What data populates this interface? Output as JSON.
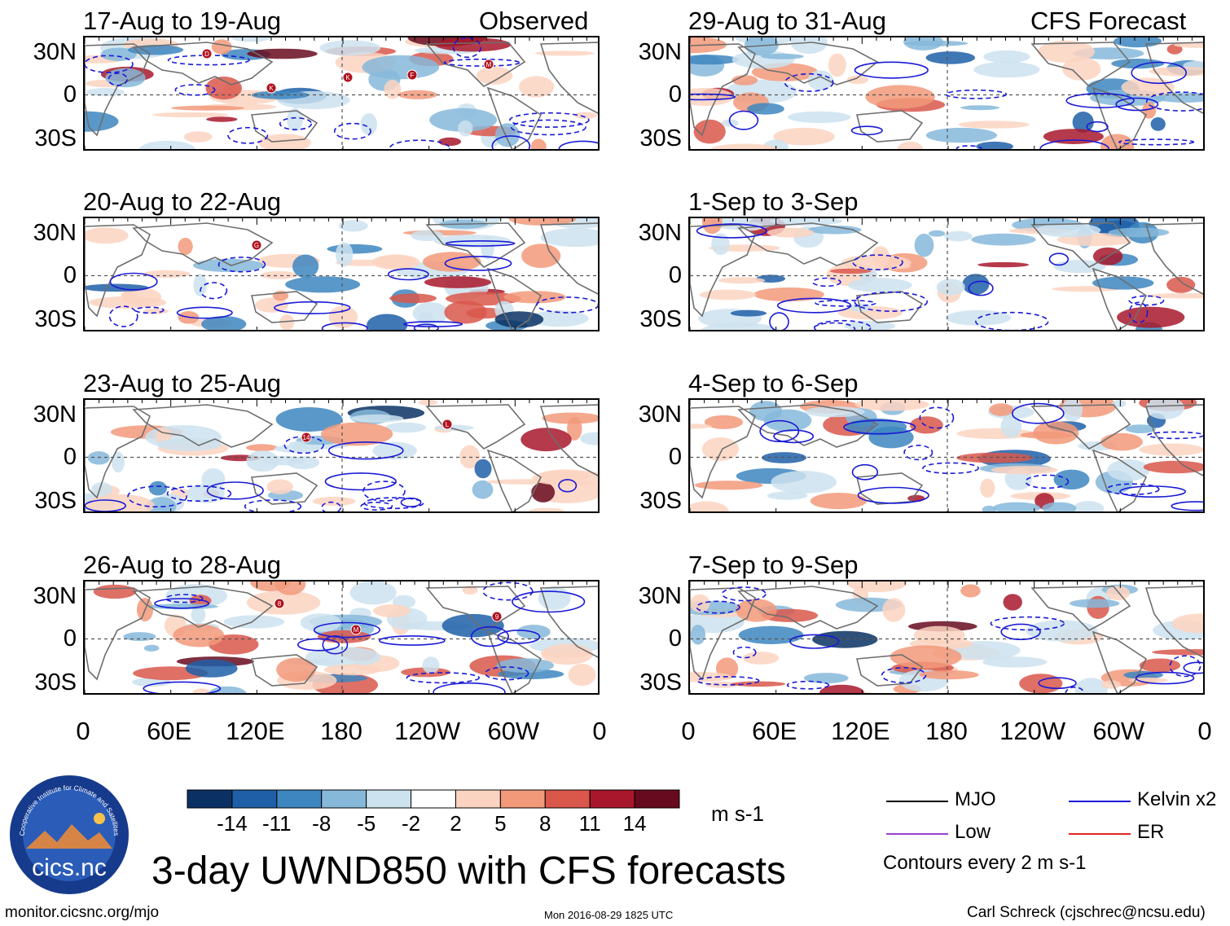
{
  "column_headers": {
    "left": "Observed",
    "right": "CFS Forecast"
  },
  "panels": [
    {
      "title": "17-Aug to 19-Aug",
      "storms": [
        "D",
        "K",
        "M",
        "K",
        "F"
      ]
    },
    {
      "title": "20-Aug to 22-Aug",
      "storms": [
        "G"
      ]
    },
    {
      "title": "23-Aug to 25-Aug",
      "storms": [
        "14",
        "L"
      ]
    },
    {
      "title": "26-Aug to 28-Aug",
      "storms": [
        "M",
        "9",
        "8"
      ]
    },
    {
      "title": "29-Aug to 31-Aug",
      "storms": []
    },
    {
      "title": "1-Sep to 3-Sep",
      "storms": []
    },
    {
      "title": "4-Sep to 6-Sep",
      "storms": []
    },
    {
      "title": "7-Sep to 9-Sep",
      "storms": []
    }
  ],
  "lat_ticks": [
    "30N",
    "0",
    "30S"
  ],
  "lon_ticks": [
    "0",
    "60E",
    "120E",
    "180",
    "120W",
    "60W",
    "0"
  ],
  "colorbar": {
    "ticks": [
      "-14",
      "-11",
      "-8",
      "-5",
      "-2",
      "2",
      "5",
      "8",
      "11",
      "14"
    ],
    "units": "m s-1",
    "colors": [
      "#0b3164",
      "#1f5fa8",
      "#3d86c0",
      "#86b8da",
      "#cce2ef",
      "#ffffff",
      "#fbd3c1",
      "#f2997a",
      "#d9574b",
      "#a8172b",
      "#670a1f"
    ]
  },
  "legend": {
    "items": [
      {
        "label": "MJO",
        "color": "#000000"
      },
      {
        "label": "Kelvin x2",
        "color": "#1a1ad6"
      },
      {
        "label": "Low",
        "color": "#9b3fd0"
      },
      {
        "label": "ER",
        "color": "#e0261f"
      }
    ],
    "contours": "Contours every 2 m s-1"
  },
  "logo": {
    "name": "cics.nc",
    "ring_text": "Cooperative Institute for Climate and Satellites"
  },
  "title": "3-day UWND850 with CFS forecasts",
  "footer": {
    "left": "monitor.cicsnc.org/mjo",
    "center": "Mon 2016-08-29 1825 UTC",
    "right": "Carl Schreck (cjschrec@ncsu.edu)"
  },
  "chart_data": {
    "type": "heatmap",
    "title": "3-day UWND850 with CFS forecasts",
    "variable": "850-hPa zonal wind anomaly",
    "units": "m s-1",
    "contour_interval": "2 m s-1",
    "x_axis": {
      "ticks": [
        "0",
        "60E",
        "120E",
        "180",
        "120W",
        "60W",
        "0"
      ],
      "range_deg": [
        0,
        360
      ]
    },
    "y_axis": {
      "ticks": [
        "30N",
        "0",
        "30S"
      ],
      "range_deg": [
        -40,
        40
      ]
    },
    "color_levels": [
      -14,
      -11,
      -8,
      -5,
      -2,
      2,
      5,
      8,
      11,
      14
    ],
    "observed_periods": [
      "17-Aug to 19-Aug",
      "20-Aug to 22-Aug",
      "23-Aug to 25-Aug",
      "26-Aug to 28-Aug"
    ],
    "forecast_periods": [
      "29-Aug to 31-Aug",
      "1-Sep to 3-Sep",
      "4-Sep to 6-Sep",
      "7-Sep to 9-Sep"
    ]
  }
}
